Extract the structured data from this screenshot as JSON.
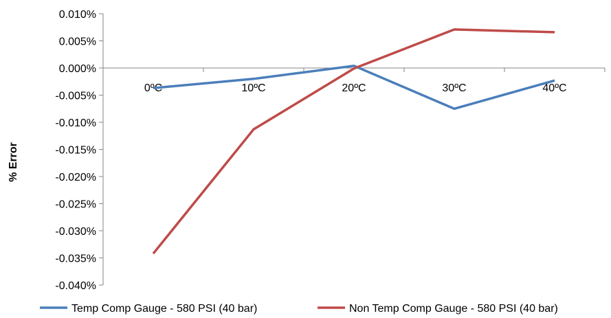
{
  "chart_data": {
    "type": "line",
    "title": "",
    "xlabel": "",
    "ylabel": "% Error",
    "categories": [
      "0ºC",
      "10ºC",
      "20ºC",
      "30ºC",
      "40ºC"
    ],
    "ylim": [
      -0.04,
      0.01
    ],
    "ytick_step": 0.005,
    "y_tick_labels": [
      "0.010%",
      "0.005%",
      "0.000%",
      "-0.005%",
      "-0.010%",
      "-0.015%",
      "-0.020%",
      "-0.025%",
      "-0.030%",
      "-0.035%",
      "-0.040%"
    ],
    "grid": false,
    "legend_position": "bottom",
    "series": [
      {
        "name": "Temp Comp Gauge - 580 PSI (40 bar)",
        "color": "#4a7ebb",
        "values": [
          -0.0037,
          -0.002,
          0.0004,
          -0.0075,
          -0.0023
        ]
      },
      {
        "name": "Non Temp Comp Gauge - 580 PSI (40 bar)",
        "color": "#be4b48",
        "values": [
          -0.0342,
          -0.0113,
          -0.0001,
          0.0071,
          0.0066
        ]
      }
    ]
  }
}
